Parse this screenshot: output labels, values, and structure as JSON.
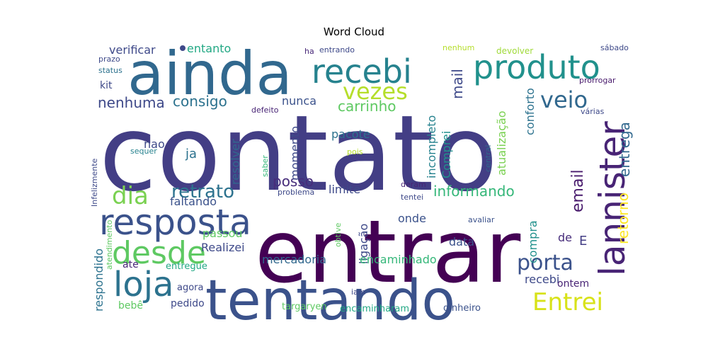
{
  "chart_data": {
    "type": "wordcloud",
    "title": "Word Cloud",
    "words": [
      {
        "text": "contato",
        "color": "#433e85"
      },
      {
        "text": "entrar",
        "color": "#440154"
      },
      {
        "text": "ainda",
        "color": "#31688e"
      },
      {
        "text": "tentando",
        "color": "#3b528b"
      },
      {
        "text": "recebi",
        "color": "#26828e"
      },
      {
        "text": "produto",
        "color": "#21918c"
      },
      {
        "text": "resposta",
        "color": "#3b528b"
      },
      {
        "text": "lannister",
        "color": "#482475"
      },
      {
        "text": "loja",
        "color": "#2c728e"
      },
      {
        "text": "desde",
        "color": "#5ec962"
      },
      {
        "text": "dia",
        "color": "#7ad151"
      },
      {
        "text": "retrato",
        "color": "#2c728e"
      },
      {
        "text": "vezes",
        "color": "#b5de2b"
      },
      {
        "text": "veio",
        "color": "#31688e"
      },
      {
        "text": "Entrei",
        "color": "#d8e219"
      },
      {
        "text": "porta",
        "color": "#3b528b"
      },
      {
        "text": "informando",
        "color": "#35b779"
      },
      {
        "text": "carrinho",
        "color": "#5ec962"
      },
      {
        "text": "consigo",
        "color": "#2c728e"
      },
      {
        "text": "nenhuma",
        "color": "#3e4989"
      },
      {
        "text": "email",
        "color": "#481a6c"
      },
      {
        "text": "entrega",
        "color": "#31688e"
      },
      {
        "text": "retorno",
        "color": "#fde725"
      },
      {
        "text": "mail",
        "color": "#3e4989"
      },
      {
        "text": "posso",
        "color": "#472d7b"
      },
      {
        "text": "verificar",
        "color": "#3e4989"
      },
      {
        "text": "entanto",
        "color": "#22a884"
      },
      {
        "text": "nunca",
        "color": "#3b528b"
      },
      {
        "text": "pacote",
        "color": "#2c728e"
      },
      {
        "text": "incompleto",
        "color": "#26828e"
      },
      {
        "text": "Comprei",
        "color": "#21918c"
      },
      {
        "text": "atualização",
        "color": "#7ad151"
      },
      {
        "text": "conforto",
        "color": "#2c728e"
      },
      {
        "text": "resolver",
        "color": "#31688e"
      },
      {
        "text": "momento",
        "color": "#3e4989"
      },
      {
        "text": "limite",
        "color": "#3e4989"
      },
      {
        "text": "nao",
        "color": "#3e4989"
      },
      {
        "text": "ja",
        "color": "#2c728e"
      },
      {
        "text": "faltando",
        "color": "#3b528b"
      },
      {
        "text": "passou",
        "color": "#5ec962"
      },
      {
        "text": "Realizei",
        "color": "#3e4989"
      },
      {
        "text": "mercadoria",
        "color": "#31688e"
      },
      {
        "text": "ligação",
        "color": "#3e4989"
      },
      {
        "text": "encaminhado",
        "color": "#35b779"
      },
      {
        "text": "onde",
        "color": "#3b528b"
      },
      {
        "text": "data",
        "color": "#3b528b"
      },
      {
        "text": "compra",
        "color": "#21918c"
      },
      {
        "text": "de",
        "color": "#472d7b"
      },
      {
        "text": "E",
        "color": "#433e85"
      },
      {
        "text": "recebi",
        "color": "#3e4989"
      },
      {
        "text": "ontem",
        "color": "#482475"
      },
      {
        "text": "respondido",
        "color": "#2c728e"
      },
      {
        "text": "ate",
        "color": "#482878"
      },
      {
        "text": "entregue",
        "color": "#22a884"
      },
      {
        "text": "agora",
        "color": "#3e4989"
      },
      {
        "text": "bebê",
        "color": "#5ec962"
      },
      {
        "text": "pedido",
        "color": "#3e4989"
      },
      {
        "text": "targaryen",
        "color": "#5ec962"
      },
      {
        "text": "encaminharam",
        "color": "#22a884"
      },
      {
        "text": "dinheiro",
        "color": "#3b528b"
      },
      {
        "text": "iam",
        "color": "#3e4989"
      },
      {
        "text": "prazo",
        "color": "#3e4989"
      },
      {
        "text": "status",
        "color": "#2c728e"
      },
      {
        "text": "kit",
        "color": "#3e4989"
      },
      {
        "text": "ha",
        "color": "#482878"
      },
      {
        "text": "entrando",
        "color": "#3e4989"
      },
      {
        "text": "nenhum",
        "color": "#b5de2b"
      },
      {
        "text": "devolver",
        "color": "#a0da39"
      },
      {
        "text": "sábado",
        "color": "#3e4989"
      },
      {
        "text": "prorrogar",
        "color": "#481a6c"
      },
      {
        "text": "várias",
        "color": "#3e4989"
      },
      {
        "text": "defeito",
        "color": "#482475"
      },
      {
        "text": "sequer",
        "color": "#26828e"
      },
      {
        "text": "saber",
        "color": "#35b779"
      },
      {
        "text": "pois",
        "color": "#b5de2b"
      },
      {
        "text": "central",
        "color": "#31688e"
      },
      {
        "text": "deram",
        "color": "#482475"
      },
      {
        "text": "tentei",
        "color": "#3e4989"
      },
      {
        "text": "problema",
        "color": "#3e4989"
      },
      {
        "text": "avaliar",
        "color": "#3b528b"
      },
      {
        "text": "obtive",
        "color": "#5ec962"
      },
      {
        "text": "Infelizmente",
        "color": "#3e4989"
      },
      {
        "text": "atendimento",
        "color": "#5ec962"
      }
    ]
  }
}
